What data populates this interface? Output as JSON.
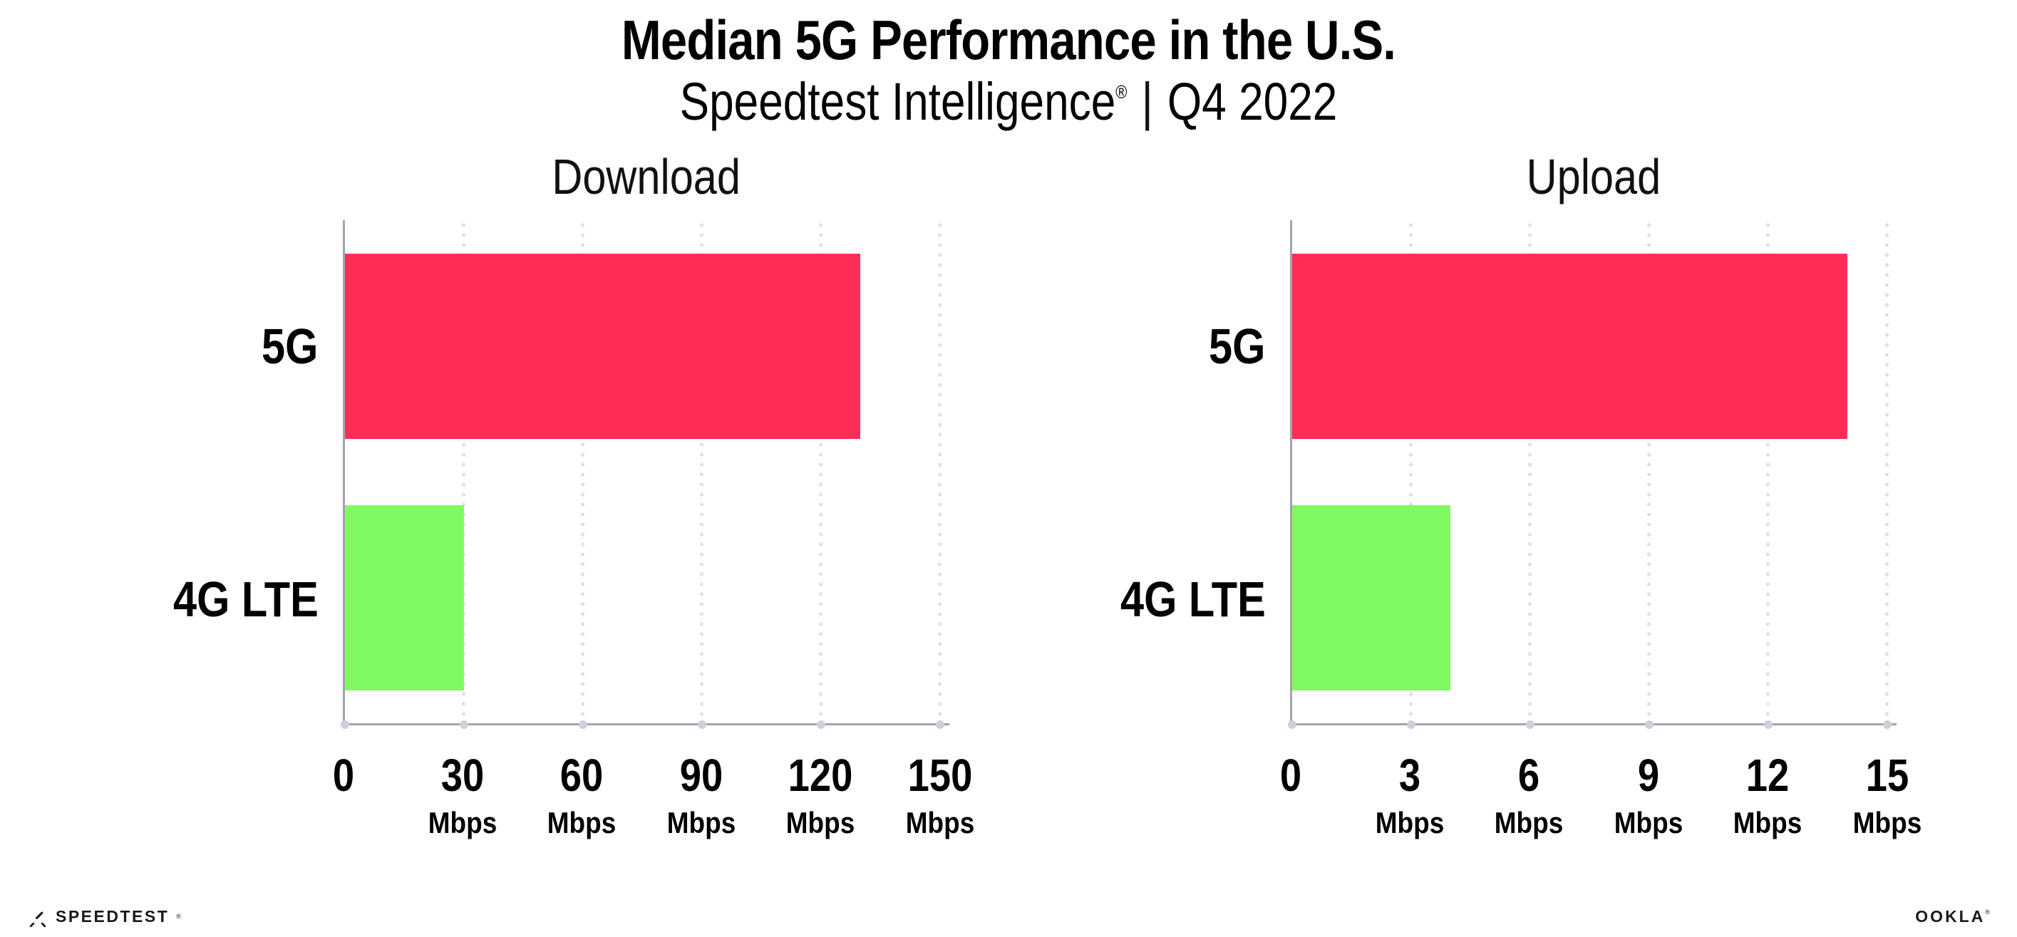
{
  "header": {
    "title": "Median 5G Performance in the U.S.",
    "subtitle": {
      "product": "Speedtest Intelligence",
      "registered_mark": "®",
      "separator": "|",
      "period": "Q4 2022"
    }
  },
  "chart_data": [
    {
      "type": "bar",
      "orientation": "horizontal",
      "title": "Download",
      "categories": [
        "5G",
        "4G LTE"
      ],
      "values": [
        130,
        30
      ],
      "value_unit": "Mbps",
      "xlim": [
        0,
        150
      ],
      "x_ticks": [
        {
          "label": "0",
          "value": 0,
          "unit": ""
        },
        {
          "label": "30",
          "value": 30,
          "unit": "Mbps"
        },
        {
          "label": "60",
          "value": 60,
          "unit": "Mbps"
        },
        {
          "label": "90",
          "value": 90,
          "unit": "Mbps"
        },
        {
          "label": "120",
          "value": 120,
          "unit": "Mbps"
        },
        {
          "label": "150",
          "value": 150,
          "unit": "Mbps"
        }
      ],
      "bar_colors": [
        "#FF2D55",
        "#80FA62"
      ],
      "grid": "vertical-dotted",
      "legend": "none"
    },
    {
      "type": "bar",
      "orientation": "horizontal",
      "title": "Upload",
      "categories": [
        "5G",
        "4G LTE"
      ],
      "values": [
        14,
        4
      ],
      "value_unit": "Mbps",
      "xlim": [
        0,
        15
      ],
      "x_ticks": [
        {
          "label": "0",
          "value": 0,
          "unit": ""
        },
        {
          "label": "3",
          "value": 3,
          "unit": "Mbps"
        },
        {
          "label": "6",
          "value": 6,
          "unit": "Mbps"
        },
        {
          "label": "9",
          "value": 9,
          "unit": "Mbps"
        },
        {
          "label": "12",
          "value": 12,
          "unit": "Mbps"
        },
        {
          "label": "15",
          "value": 15,
          "unit": "Mbps"
        }
      ],
      "bar_colors": [
        "#FF2D55",
        "#80FA62"
      ],
      "grid": "vertical-dotted",
      "legend": "none"
    }
  ],
  "colors": {
    "bar_5g": "#FF2D55",
    "bar_4g_lte": "#80FA62",
    "axis_line": "#A2A4AA",
    "gridline_dot": "#DDE0EA",
    "axis_tick_dot": "#CDD1DB",
    "text": "#000000",
    "background": "#FFFFFF"
  },
  "footer": {
    "speedtest_logo_text": "SPEEDTEST",
    "speedtest_mark": "®",
    "ookla_logo_text": "OOKLA",
    "ookla_mark": "®"
  }
}
